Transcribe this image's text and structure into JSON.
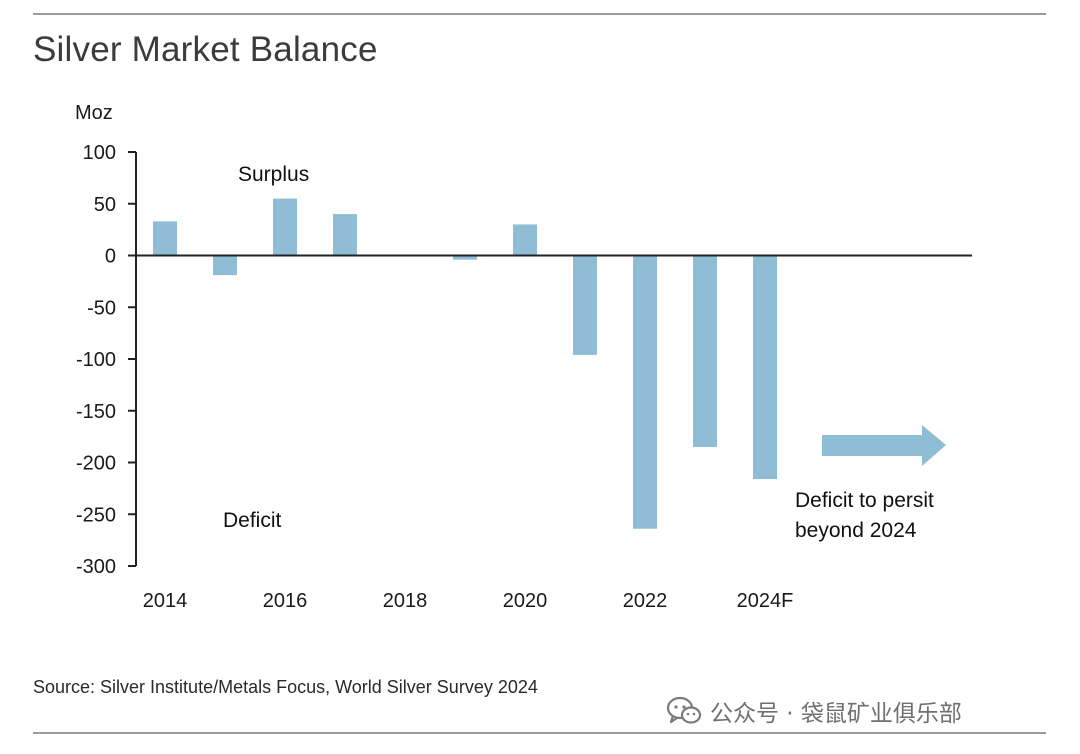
{
  "title": "Silver Market Balance",
  "source": "Source: Silver Institute/Metals Focus, World Silver Survey 2024",
  "watermark": {
    "text": "公众号 · 袋鼠矿业俱乐部",
    "icon": "wechat-icon"
  },
  "colors": {
    "bar": "#8fbdd6",
    "arrow": "#8fbdd6",
    "axis": "#222222",
    "rule": "#9a9a9a"
  },
  "chart_data": {
    "type": "bar",
    "title": "Silver Market Balance",
    "ylabel": "Moz",
    "xlabel": "",
    "ylim": [
      -300,
      100
    ],
    "yticks": [
      100,
      50,
      0,
      -50,
      -100,
      -150,
      -200,
      -250,
      -300
    ],
    "categories": [
      "2014",
      "2015",
      "2016",
      "2017",
      "2018",
      "2019",
      "2020",
      "2021",
      "2022",
      "2023",
      "2024F"
    ],
    "values": [
      33,
      -19,
      55,
      40,
      0,
      -4,
      30,
      -96,
      -264,
      -185,
      -216
    ],
    "xtick_labels": [
      "2014",
      "2016",
      "2018",
      "2020",
      "2022",
      "2024F"
    ],
    "annotations": {
      "surplus": "Surplus",
      "deficit": "Deficit",
      "note_line1": "Deficit to persit",
      "note_line2": "beyond 2024"
    },
    "grid": false,
    "legend": "none"
  }
}
